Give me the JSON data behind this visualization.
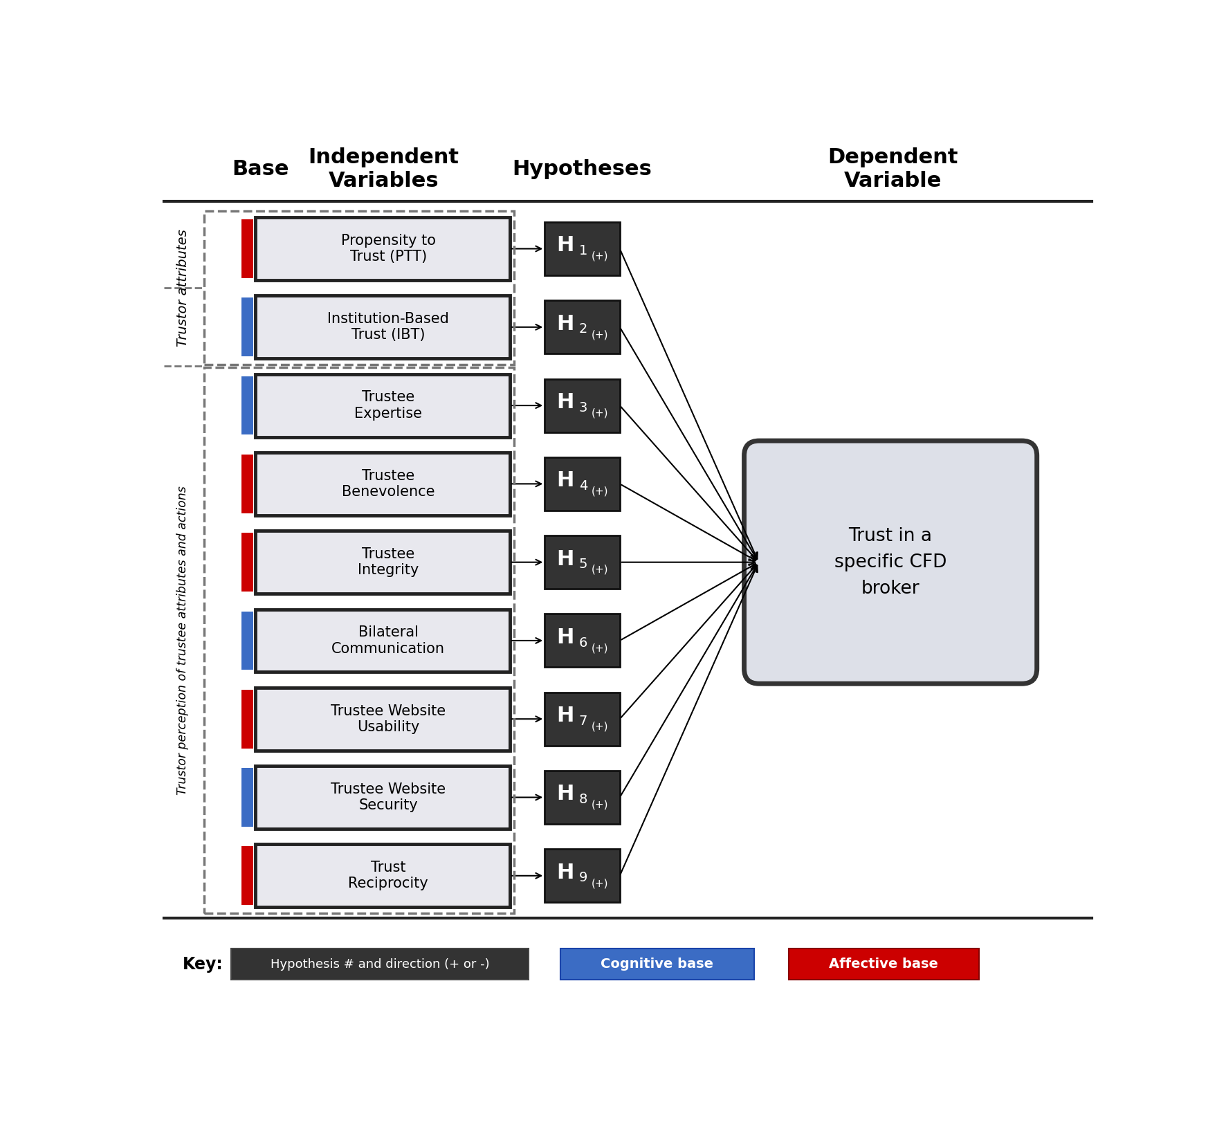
{
  "title_base": "Base",
  "title_iv": "Independent\nVariables",
  "title_hyp": "Hypotheses",
  "title_dv": "Dependent\nVariable",
  "iv_labels": [
    "Propensity to\nTrust (PTT)",
    "Institution-Based\nTrust (IBT)",
    "Trustee\nExpertise",
    "Trustee\nBenevolence",
    "Trustee\nIntegrity",
    "Bilateral\nCommunication",
    "Trustee Website\nUsability",
    "Trustee Website\nSecurity",
    "Trust\nReciprocity"
  ],
  "hyp_numbers": [
    "1",
    "2",
    "3",
    "4",
    "5",
    "6",
    "7",
    "8",
    "9"
  ],
  "hyp_suffix": "(+)",
  "dv_label": "Trust in a\nspecific CFD\nbroker",
  "sidebar_top_label": "Trustor attributes",
  "sidebar_bottom_label": "Trustor perception of trustee attributes and actions",
  "key_label": "Key:",
  "key_hyp_text": "Hypothesis # and direction (+ or -)",
  "key_cog_text": "Cognitive base",
  "key_aff_text": "Affective base",
  "bar_colors": [
    "#CC0000",
    "#3b6cc4",
    "#3b6cc4",
    "#CC0000",
    "#CC0000",
    "#3b6cc4",
    "#CC0000",
    "#3b6cc4",
    "#CC0000"
  ],
  "dark_bg": "#333333",
  "iv_box_bg": "#e8e8ee",
  "dv_box_bg": "#dde0e8",
  "blue_key": "#3b6cc4",
  "red_key": "#CC0000",
  "white": "#ffffff",
  "black": "#000000",
  "header_line_color": "#222222",
  "dashed_box_color": "#777777"
}
